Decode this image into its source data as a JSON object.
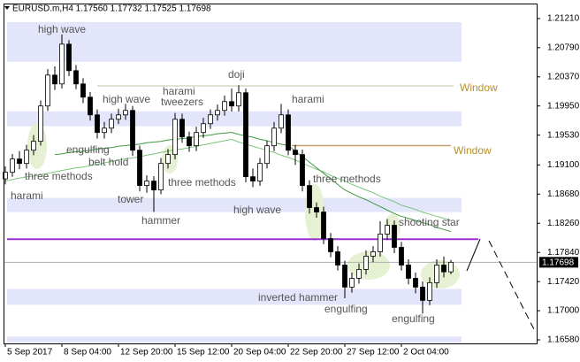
{
  "chart_data": {
    "type": "candlestick",
    "header": "EURUSD.m,H4  1.17560 1.17732 1.17525 1.17698",
    "categories": [
      "5 Sep 2017",
      null,
      null,
      null,
      null,
      null,
      null,
      null,
      "8 Sep 04:00",
      null,
      null,
      null,
      null,
      null,
      null,
      null,
      "12 Sep 20:00",
      null,
      null,
      null,
      null,
      null,
      null,
      null,
      "15 Sep 12:00",
      null,
      null,
      null,
      null,
      null,
      null,
      null,
      "20 Sep 04:00",
      null,
      null,
      null,
      null,
      null,
      null,
      null,
      "22 Sep 20:00",
      null,
      null,
      null,
      null,
      null,
      null,
      null,
      "27 Sep 12:00",
      null,
      null,
      null,
      null,
      null,
      null,
      null,
      "2 Oct 04:00",
      null,
      null,
      null,
      null,
      null,
      null,
      null
    ],
    "open": [
      1.189,
      1.18995,
      1.19186,
      1.19122,
      1.19313,
      1.19441,
      1.1995,
      1.20395,
      1.20268,
      1.20841,
      1.20459,
      1.20268,
      1.20077,
      1.19822,
      1.19568,
      1.19631,
      1.19759,
      1.19822,
      1.19886,
      1.19313,
      1.18804,
      1.18868,
      1.1874,
      1.19122,
      1.1925,
      1.19759,
      1.19504,
      1.19377,
      1.19568,
      1.19695,
      1.19822,
      1.19886,
      1.20013,
      1.1995,
      1.20141,
      1.18931,
      1.18868,
      1.19122,
      1.19377,
      1.19631,
      1.19822,
      1.19313,
      1.1925,
      1.18804,
      1.18486,
      1.18422,
      1.1804,
      1.17849,
      1.17658,
      1.1734,
      1.17467,
      1.17595,
      1.17786,
      1.17849,
      1.18104,
      1.18231,
      1.17913,
      1.17658,
      1.17467,
      1.1734,
      1.17149,
      1.17404,
      1.17658,
      1.1756
    ],
    "high": [
      1.1908,
      1.1926,
      1.193,
      1.1939,
      1.1953,
      1.2003,
      1.2048,
      1.2052,
      1.2098,
      1.209,
      1.2054,
      1.2035,
      1.2015,
      1.199,
      1.1972,
      1.1984,
      1.1991,
      1.1998,
      1.1995,
      1.1938,
      1.1895,
      1.1894,
      1.192,
      1.1933,
      1.1985,
      1.1984,
      1.1958,
      1.1965,
      1.1978,
      1.199,
      1.1997,
      1.201,
      1.202,
      1.2025,
      1.202,
      1.1905,
      1.192,
      1.1945,
      1.1972,
      1.1998,
      1.199,
      1.1939,
      1.1932,
      1.1888,
      1.1856,
      1.185,
      1.1812,
      1.1793,
      1.1772,
      1.1755,
      1.1768,
      1.1787,
      1.1793,
      1.1829,
      1.1832,
      1.183,
      1.1799,
      1.1774,
      1.1755,
      1.1742,
      1.1748,
      1.1774,
      1.1778,
      1.17732
    ],
    "low": [
      1.1882,
      1.1893,
      1.1904,
      1.1905,
      1.1924,
      1.1938,
      1.1988,
      1.2018,
      1.202,
      1.2038,
      1.2019,
      1.1999,
      1.1974,
      1.1948,
      1.1948,
      1.1956,
      1.1969,
      1.1975,
      1.1923,
      1.1872,
      1.187,
      1.18422,
      1.1868,
      1.1905,
      1.1918,
      1.1942,
      1.1929,
      1.193,
      1.1949,
      1.1962,
      1.1974,
      1.1981,
      1.1987,
      1.1987,
      1.1885,
      1.1878,
      1.188,
      1.1905,
      1.193,
      1.1956,
      1.1924,
      1.191,
      1.1872,
      1.184,
      1.1834,
      1.1796,
      1.1777,
      1.1758,
      1.1718,
      1.1726,
      1.1739,
      1.1752,
      1.177,
      1.1778,
      1.1802,
      1.1783,
      1.1758,
      1.1738,
      1.1725,
      1.1696,
      1.1708,
      1.1733,
      1.1748,
      1.17525
    ],
    "close": [
      1.18995,
      1.19186,
      1.19122,
      1.19313,
      1.19441,
      1.1995,
      1.20395,
      1.20268,
      1.20841,
      1.20459,
      1.20268,
      1.20077,
      1.19822,
      1.19568,
      1.19631,
      1.19759,
      1.19822,
      1.19886,
      1.19313,
      1.18804,
      1.18868,
      1.1874,
      1.19122,
      1.1925,
      1.19759,
      1.19504,
      1.19377,
      1.19568,
      1.19695,
      1.19822,
      1.19886,
      1.20013,
      1.1995,
      1.20141,
      1.18931,
      1.18868,
      1.19122,
      1.19377,
      1.19631,
      1.19822,
      1.19313,
      1.1925,
      1.18804,
      1.18486,
      1.18422,
      1.1804,
      1.17849,
      1.17658,
      1.1734,
      1.17467,
      1.17595,
      1.17786,
      1.17849,
      1.18104,
      1.18231,
      1.17913,
      1.17658,
      1.17467,
      1.1734,
      1.17149,
      1.17404,
      1.17658,
      1.1756,
      1.17698
    ],
    "up_color": "#ffffff",
    "down_color": "#000000",
    "series": [
      {
        "color": "#7cc47c",
        "values": [
          1.1887,
          1.1889,
          1.1891,
          1.1893,
          1.1894,
          1.1896,
          1.1898,
          1.19,
          1.1902,
          1.1904,
          1.1906,
          1.1907,
          1.1909,
          1.1911,
          1.1913,
          1.1915,
          1.1917,
          1.1919,
          1.192,
          1.1922,
          1.1924,
          1.1926,
          1.1928,
          1.193,
          1.1932,
          1.1933,
          1.1935,
          1.1937,
          1.1939,
          1.1941,
          1.1943,
          1.1945,
          1.1947,
          1.1943,
          1.194,
          1.1937,
          1.1934,
          1.1931,
          1.1928,
          1.1924,
          1.1921,
          1.1917,
          1.1913,
          1.1908,
          1.1904,
          1.19,
          1.1895,
          1.1891,
          1.1887,
          1.1882,
          1.1878,
          1.1874,
          1.187,
          1.1865,
          1.1861,
          1.1857,
          1.1852,
          1.1849,
          1.1846,
          1.1842,
          1.1839,
          1.1836,
          1.1833,
          1.183
        ]
      },
      {
        "color": "#3f9a3f",
        "values": [
          null,
          null,
          null,
          null,
          null,
          null,
          null,
          1.1925,
          1.1926,
          1.1928,
          1.1929,
          1.193,
          1.1931,
          1.1933,
          1.1934,
          1.1935,
          1.1937,
          1.1938,
          1.1939,
          1.194,
          1.1942,
          1.1943,
          1.1944,
          1.1946,
          1.1947,
          1.1948,
          1.1949,
          1.1951,
          1.1952,
          1.1953,
          1.1955,
          1.1956,
          1.1957,
          1.1954,
          1.1952,
          1.195,
          1.1947,
          1.1945,
          1.1942,
          1.194,
          1.1938,
          1.193,
          1.1922,
          1.1914,
          1.1906,
          1.1898,
          1.189,
          1.1882,
          1.1874,
          1.1869,
          1.1864,
          1.186,
          1.1855,
          1.185,
          1.1845,
          1.184,
          1.1836,
          1.1833,
          1.183,
          1.1827,
          1.1824,
          1.182,
          1.1817,
          1.1814
        ]
      }
    ],
    "zones": [
      {
        "from": 1.20586,
        "to": 1.21159,
        "color": "#e3e5fb"
      },
      {
        "from": 1.19657,
        "to": 1.19873,
        "color": "#e3e5fb"
      },
      {
        "from": 1.18422,
        "to": 1.18626,
        "color": "#e3e5fb"
      },
      {
        "from": 1.17085,
        "to": 1.17315,
        "color": "#e3e5fb"
      },
      {
        "from": 1.16538,
        "to": 1.16627,
        "color": "#e3e5fb"
      }
    ],
    "levels": [
      {
        "value": 1.2024,
        "label": "Window",
        "color": "#d9d9c4"
      },
      {
        "value": 1.1938,
        "label": "Window",
        "color": "#c8a070"
      },
      {
        "value": 1.1803,
        "color": "#9b30d0"
      }
    ],
    "annotations": [
      "high wave",
      "high wave",
      "harami",
      "tweezers",
      "doji",
      "harami",
      "engulfing",
      "belt hold",
      "three methods",
      "harami",
      "three methods",
      "tower",
      "hammer",
      "high wave",
      "three methods",
      "shooting star",
      "inverted hammer",
      "engulfing",
      "engulfing"
    ],
    "ylim": [
      1.16529,
      1.21426
    ],
    "yticks": [
      {
        "value": 1.2121,
        "label": "1.21210"
      },
      {
        "value": 1.2079,
        "label": "1.20790"
      },
      {
        "value": 1.2037,
        "label": "1.20370"
      },
      {
        "value": 1.1995,
        "label": "1.19950"
      },
      {
        "value": 1.1953,
        "label": "1.19530"
      },
      {
        "value": 1.191,
        "label": "1.19100"
      },
      {
        "value": 1.1868,
        "label": "1.18680"
      },
      {
        "value": 1.1826,
        "label": "1.18260"
      },
      {
        "value": 1.1784,
        "label": "1.17840"
      },
      {
        "value": 1.1742,
        "label": "1.17420"
      },
      {
        "value": 1.17,
        "label": "1.17000"
      },
      {
        "value": 1.1658,
        "label": "1.16580"
      }
    ]
  }
}
